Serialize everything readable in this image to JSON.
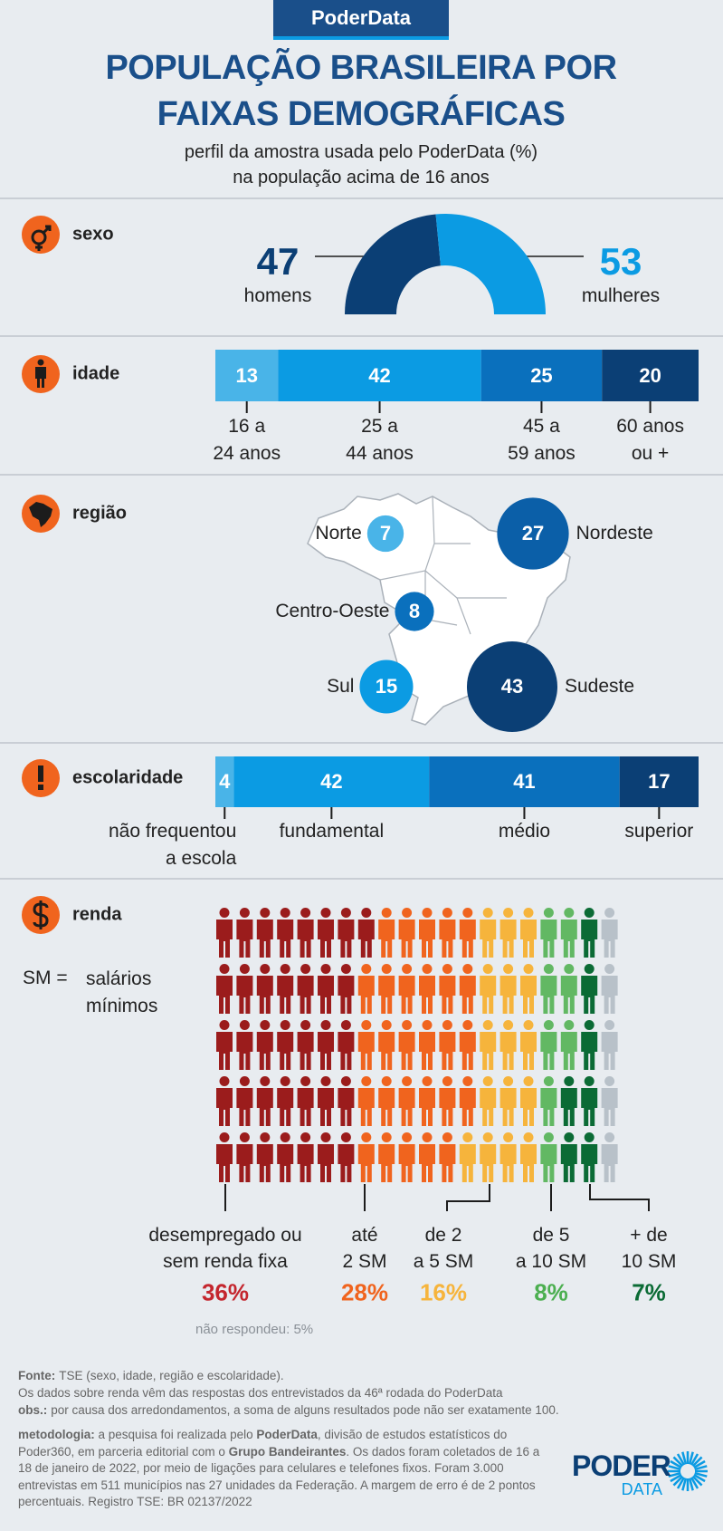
{
  "header": {
    "brand": "PoderData",
    "title": "POPULAÇÃO BRASILEIRA POR\nFAIXAS DEMOGRÁFICAS",
    "subtitle": "perfil da amostra usada pelo PoderData (%)\nna população acima de 16 anos"
  },
  "chart_data": [
    {
      "type": "semicircle",
      "title": "sexo",
      "categories": [
        "homens",
        "mulheres"
      ],
      "values": [
        47,
        53
      ],
      "colors": [
        "#0b3f75",
        "#0b9be3"
      ]
    },
    {
      "type": "stacked-bar",
      "title": "idade",
      "categories": [
        "16 a\n24 anos",
        "25 a\n44 anos",
        "45 a\n59 anos",
        "60 anos\nou +"
      ],
      "values": [
        13,
        42,
        25,
        20
      ],
      "colors": [
        "#49b4e8",
        "#0b9be3",
        "#0a70bd",
        "#0b3f75"
      ]
    },
    {
      "type": "bubble-map",
      "title": "região",
      "categories": [
        "Norte",
        "Nordeste",
        "Centro-Oeste",
        "Sul",
        "Sudeste"
      ],
      "values": [
        7,
        27,
        8,
        15,
        43
      ],
      "colors": [
        "#49b4e8",
        "#0b5fa8",
        "#0a70bd",
        "#0b9be3",
        "#0b3f75"
      ]
    },
    {
      "type": "stacked-bar",
      "title": "escolaridade",
      "categories": [
        "não frequentou\na escola",
        "fundamental",
        "médio",
        "superior"
      ],
      "values": [
        4,
        42,
        41,
        17
      ],
      "colors": [
        "#49b4e8",
        "#0b9be3",
        "#0a70bd",
        "#0b3f75"
      ]
    },
    {
      "type": "pictogram",
      "title": "renda",
      "note": "SM =",
      "note_text": "salários\nmínimos",
      "categories": [
        "desempregado ou\nsem renda fixa",
        "até\n2 SM",
        "de 2\na 5 SM",
        "de 5\na 10 SM",
        "+ de\n10 SM",
        "não respondeu:"
      ],
      "values": [
        36,
        28,
        16,
        8,
        7,
        5
      ],
      "value_labels": [
        "36%",
        "28%",
        "16%",
        "8%",
        "7%",
        "5%"
      ],
      "colors": [
        "#9b1c1c",
        "#f0641e",
        "#f6b43c",
        "#62b863",
        "#0b6b35",
        "#b8c1c9"
      ],
      "label_colors": [
        "#c4262e",
        "#f0641e",
        "#f6b43c",
        "#4caf50",
        "#0b6b35",
        "#8a9097"
      ]
    }
  ],
  "footer": {
    "notes": [
      {
        "label": "Fonte:",
        "text": "TSE (sexo, idade, região e escolaridade)."
      },
      {
        "text": "Os dados sobre renda vêm das respostas dos entrevistados da 46ª rodada do PoderData"
      },
      {
        "label": "obs.:",
        "text": "por causa dos arredondamentos, a soma de alguns resultados pode não ser exatamente 100."
      }
    ],
    "methodology": [
      {
        "text": "metodologia:",
        "bold": true
      },
      {
        "text": " a pesquisa foi realizada pelo "
      },
      {
        "text": "PoderData",
        "bold": true
      },
      {
        "text": ", divisão de estudos estatísticos do Poder360, em parceria editorial com o "
      },
      {
        "text": "Grupo Bandeirantes",
        "bold": true
      },
      {
        "text": ". Os dados foram coletados de 16 a 18 de janeiro de 2022, por meio de ligações para celulares e telefones fixos. Foram 3.000 entrevistas em 511 municípios nas 27 unidades da Federação. A margem de erro é de 2 pontos percentuais.  Registro TSE: BR 02137/2022"
      }
    ]
  },
  "logo": {
    "name": "PODER",
    "sub": "DATA"
  }
}
